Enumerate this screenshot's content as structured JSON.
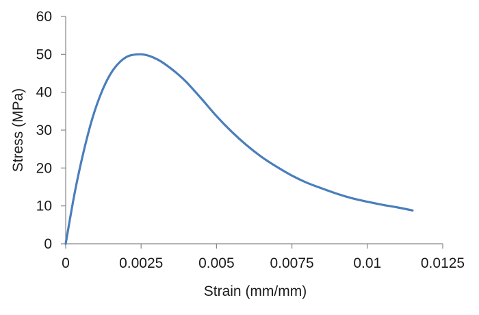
{
  "chart_data": {
    "type": "line",
    "title": "",
    "xlabel": "Strain (mm/mm)",
    "ylabel": "Stress (MPa)",
    "xlim": [
      0,
      0.0125
    ],
    "ylim": [
      0,
      60
    ],
    "x_ticks": [
      "0",
      "0.0025",
      "0.005",
      "0.0075",
      "0.01",
      "0.0125"
    ],
    "y_ticks": [
      "0",
      "10",
      "20",
      "30",
      "40",
      "50",
      "60"
    ],
    "grid": false,
    "legend": "none",
    "colors": {
      "series": "#4a7ebb",
      "axis": "#868686"
    },
    "series": [
      {
        "x": [
          0,
          0.0003,
          0.0006,
          0.0009,
          0.0012,
          0.0015,
          0.0018,
          0.0021,
          0.0025,
          0.0028,
          0.0031,
          0.0034,
          0.0037,
          0.004,
          0.0045,
          0.005,
          0.0055,
          0.006,
          0.0065,
          0.007,
          0.0075,
          0.008,
          0.0085,
          0.009,
          0.0095,
          0.01,
          0.0105,
          0.011,
          0.0115
        ],
        "y": [
          0,
          13.5,
          24.5,
          33.5,
          40.2,
          45.0,
          48.0,
          49.6,
          50.0,
          49.5,
          48.4,
          46.8,
          44.9,
          42.7,
          38.3,
          33.7,
          29.6,
          26.0,
          22.9,
          20.3,
          18.0,
          16.1,
          14.6,
          13.2,
          12.0,
          11.1,
          10.3,
          9.6,
          8.8
        ]
      }
    ]
  }
}
